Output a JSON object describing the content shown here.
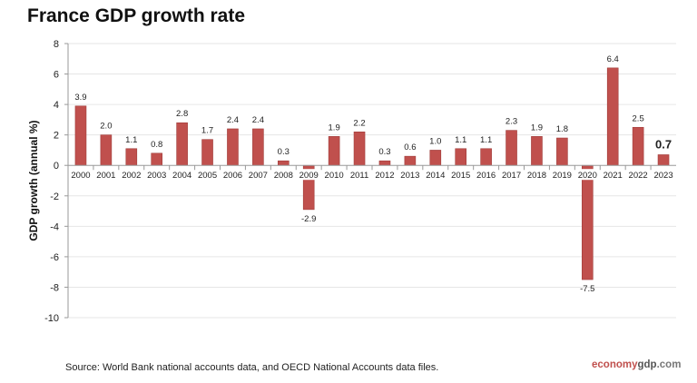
{
  "chart_data": {
    "type": "bar",
    "title": "France GDP growth rate",
    "ylabel": "GDP growth (annual %)",
    "xlabel": "",
    "ylim": [
      -10,
      8
    ],
    "yticks": [
      8,
      6,
      4,
      2,
      0,
      -2,
      -4,
      -6,
      -8,
      -10
    ],
    "grid": true,
    "bar_color": "#c0504d",
    "categories": [
      "2000",
      "2001",
      "2002",
      "2003",
      "2004",
      "2005",
      "2006",
      "2007",
      "2008",
      "2009",
      "2010",
      "2011",
      "2012",
      "2013",
      "2014",
      "2015",
      "2016",
      "2017",
      "2018",
      "2019",
      "2020",
      "2021",
      "2022",
      "2023"
    ],
    "values": [
      3.9,
      2.0,
      1.1,
      0.8,
      2.8,
      1.7,
      2.4,
      2.4,
      0.3,
      -2.9,
      1.9,
      2.2,
      0.3,
      0.6,
      1.0,
      1.1,
      1.1,
      2.3,
      1.9,
      1.8,
      -7.5,
      6.4,
      2.5,
      0.7
    ],
    "labels": [
      "3.9",
      "2.0",
      "1.1",
      "0.8",
      "2.8",
      "1.7",
      "2.4",
      "2.4",
      "0.3",
      "-2.9",
      "1.9",
      "2.2",
      "0.3",
      "0.6",
      "1.0",
      "1.1",
      "1.1",
      "2.3",
      "1.9",
      "1.8",
      "-7.5",
      "6.4",
      "2.5",
      "0.7"
    ],
    "highlighted_label": "2023"
  },
  "source": "Source:  World Bank national accounts data, and OECD National Accounts data files.",
  "logo": {
    "part1": "economy",
    "part2": "gdp",
    "part3": ".com"
  }
}
